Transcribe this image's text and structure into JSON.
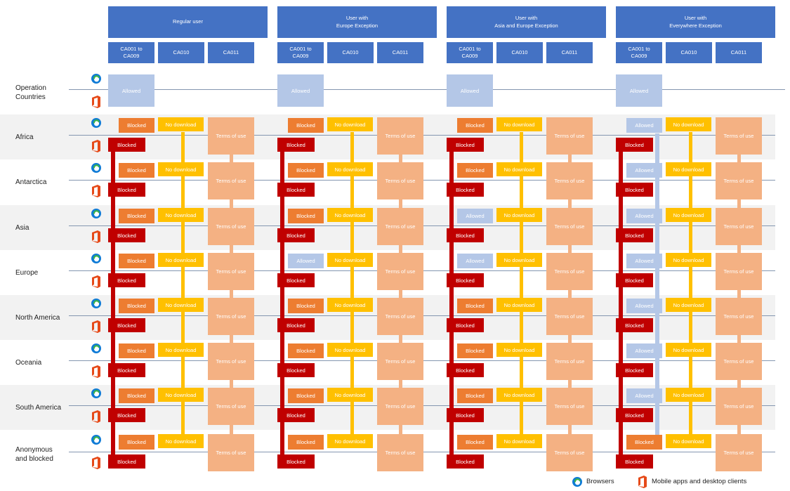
{
  "colors": {
    "header": "#4472c4",
    "allowed": "#b4c7e7",
    "blocked_orange": "#ed7d31",
    "no_download": "#ffc000",
    "terms_of_use": "#f4b183",
    "blocked_red": "#c00000",
    "line": "#8496b0",
    "band": "#f2f2f2"
  },
  "user_groups": [
    {
      "label": "Regular user",
      "policies": [
        "CA001 to\nCA009",
        "CA010",
        "CA011"
      ]
    },
    {
      "label": "User with\nEurope Exception",
      "policies": [
        "CA001 to\nCA009",
        "CA010",
        "CA011"
      ]
    },
    {
      "label": "User with\nAsia and Europe Exception",
      "policies": [
        "CA001 to\nCA009",
        "CA010",
        "CA011"
      ]
    },
    {
      "label": "User with\nEverywhere Exception",
      "policies": [
        "CA001 to\nCA009",
        "CA010",
        "CA011"
      ]
    }
  ],
  "operation_row": {
    "label": "Operation\nCountries",
    "cell": "Allowed"
  },
  "regions": [
    {
      "label": "Africa",
      "browser_access": [
        "Blocked",
        "Blocked",
        "Blocked",
        "Allowed"
      ]
    },
    {
      "label": "Antarctica",
      "browser_access": [
        "Blocked",
        "Blocked",
        "Blocked",
        "Allowed"
      ]
    },
    {
      "label": "Asia",
      "browser_access": [
        "Blocked",
        "Blocked",
        "Allowed",
        "Allowed"
      ]
    },
    {
      "label": "Europe",
      "browser_access": [
        "Blocked",
        "Allowed",
        "Allowed",
        "Allowed"
      ]
    },
    {
      "label": "North America",
      "browser_access": [
        "Blocked",
        "Blocked",
        "Blocked",
        "Allowed"
      ]
    },
    {
      "label": "Oceania",
      "browser_access": [
        "Blocked",
        "Blocked",
        "Blocked",
        "Allowed"
      ]
    },
    {
      "label": "South America",
      "browser_access": [
        "Blocked",
        "Blocked",
        "Blocked",
        "Allowed"
      ]
    },
    {
      "label": "Anonymous\nand blocked",
      "browser_access": [
        "Blocked",
        "Blocked",
        "Blocked",
        "Blocked"
      ]
    }
  ],
  "labels": {
    "blocked": "Blocked",
    "allowed": "Allowed",
    "no_download": "No download",
    "terms_of_use": "Terms of use"
  },
  "legend": {
    "browsers_icon": "edge-browser-icon",
    "browsers": "Browsers",
    "apps_icon": "office-app-icon",
    "apps": "Mobile apps and desktop clients"
  }
}
